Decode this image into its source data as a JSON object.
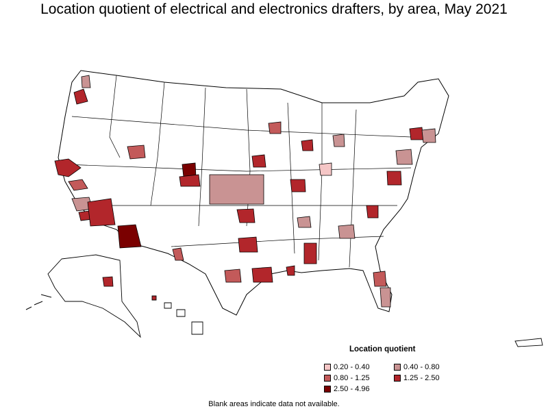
{
  "title": "Location quotient of electrical and electronics drafters, by area, May 2021",
  "legend": {
    "title": "Location quotient",
    "items": [
      {
        "label": "0.20 - 0.40",
        "color": "#f5c6c6"
      },
      {
        "label": "0.40 - 0.80",
        "color": "#c99393"
      },
      {
        "label": "0.80 - 1.25",
        "color": "#c35a5a"
      },
      {
        "label": "1.25 - 2.50",
        "color": "#b2262b"
      },
      {
        "label": "2.50 - 4.96",
        "color": "#7a0000"
      }
    ]
  },
  "note": "Blank areas indicate data not available."
}
